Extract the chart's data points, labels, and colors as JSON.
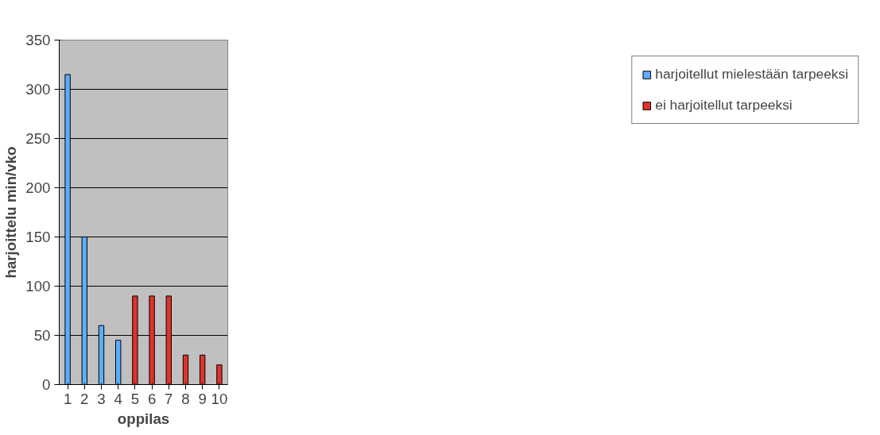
{
  "chart_data": {
    "type": "bar",
    "xlabel": "oppilas",
    "ylabel": "harjoittelu min/vko",
    "categories": [
      "1",
      "2",
      "3",
      "4",
      "5",
      "6",
      "7",
      "8",
      "9",
      "10"
    ],
    "series": [
      {
        "name": "harjoitellut mielestään tarpeeksi",
        "color": "#5fadff",
        "values": [
          315,
          150,
          60,
          45,
          null,
          null,
          null,
          null,
          null,
          null
        ]
      },
      {
        "name": "ei harjoitellut tarpeeksi",
        "color": "#e0332a",
        "values": [
          null,
          null,
          null,
          null,
          90,
          90,
          90,
          30,
          30,
          20
        ]
      }
    ],
    "ylim": [
      0,
      350
    ],
    "yticks": [
      0,
      50,
      100,
      150,
      200,
      250,
      300,
      350
    ],
    "grid": "y",
    "legend": "right"
  }
}
